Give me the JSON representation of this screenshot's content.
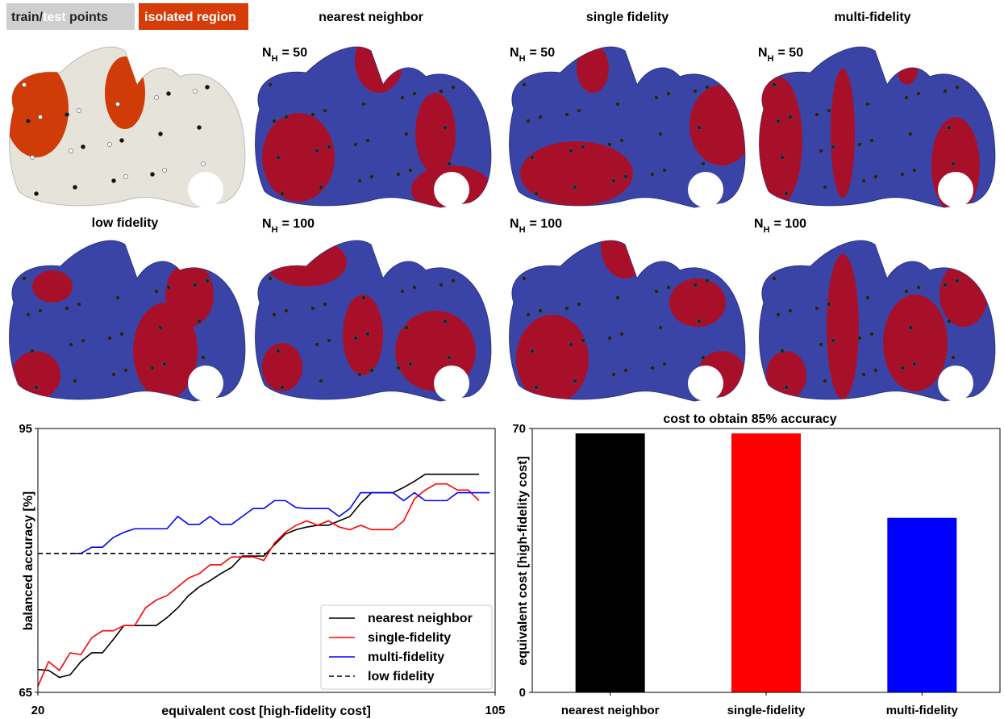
{
  "header": {
    "legend_a": [
      "train/",
      "test",
      " points"
    ],
    "legend_b": "isolated region"
  },
  "columns": [
    "nearest neighbor",
    "single fidelity",
    "multi-fidelity"
  ],
  "low_fidelity_label": "low fidelity",
  "n_symbol": {
    "main": "N",
    "sub": "H"
  },
  "n_values": [
    "= 50",
    "= 100"
  ],
  "chart_data": [
    {
      "type": "line",
      "xlabel": "equivalent cost [high-fidelity cost]",
      "ylabel": "balanced accuracy [%]",
      "x": [
        20,
        22,
        24,
        26,
        28,
        30,
        32,
        34,
        36,
        38,
        40,
        42,
        44,
        46,
        48,
        50,
        52,
        54,
        56,
        58,
        60,
        62,
        64,
        66,
        68,
        70,
        72,
        74,
        76,
        78,
        80,
        82,
        84,
        86,
        88,
        90,
        92,
        94,
        96,
        98,
        100,
        102,
        104
      ],
      "series": [
        {
          "name": "nearest neighbor",
          "color": "#000000",
          "values": [
            67.6,
            67.5,
            66.7,
            67.0,
            68.5,
            69.5,
            69.5,
            71.0,
            72.6,
            72.6,
            72.6,
            72.6,
            73.5,
            74.6,
            76.0,
            77.0,
            77.7,
            78.5,
            79.2,
            80.5,
            80.5,
            80.5,
            81.8,
            83.0,
            83.5,
            83.8,
            84.0,
            84.0,
            84.5,
            85.0,
            86.5,
            87.7,
            87.7,
            87.7,
            88.3,
            89.0,
            89.8,
            89.8,
            89.8,
            89.8,
            89.8,
            89.8,
            null
          ]
        },
        {
          "name": "single-fidelity",
          "color": "#ff0000",
          "values": [
            65.7,
            68.5,
            67.5,
            69.5,
            69.3,
            71.2,
            72.0,
            72.0,
            72.6,
            72.6,
            74.6,
            75.5,
            76.0,
            77.0,
            78.0,
            78.5,
            79.5,
            79.5,
            80.4,
            80.4,
            80.4,
            80.0,
            82.0,
            83.2,
            84.0,
            84.5,
            84.0,
            84.5,
            83.8,
            83.5,
            84.0,
            83.5,
            83.5,
            83.5,
            84.5,
            87.0,
            88.0,
            88.7,
            88.7,
            88.0,
            88.0,
            86.8,
            null
          ]
        },
        {
          "name": "multi-fidelity",
          "color": "#0000ff",
          "values": [
            null,
            null,
            null,
            80.8,
            80.8,
            81.5,
            81.5,
            82.6,
            83.2,
            83.6,
            83.6,
            83.6,
            83.6,
            85.0,
            84.1,
            84.1,
            85.0,
            84.1,
            84.1,
            85.0,
            85.9,
            85.9,
            86.8,
            86.8,
            86.0,
            85.9,
            85.9,
            85.9,
            85.0,
            85.9,
            87.7,
            87.7,
            87.7,
            87.7,
            86.8,
            87.7,
            86.8,
            86.8,
            86.8,
            87.7,
            87.7,
            87.7,
            87.7
          ]
        }
      ],
      "reference_line": {
        "name": "low fidelity",
        "value": 80.8,
        "color": "#000000",
        "dashed": true
      },
      "xlim": [
        20,
        105
      ],
      "ylim": [
        65,
        95
      ],
      "xticks": [
        20,
        105
      ],
      "yticks": [
        65,
        95
      ],
      "legend": "lower right"
    },
    {
      "type": "bar",
      "title": "cost to obtain 85% accuracy",
      "ylabel": "equivalent cost [high-fidelity cost]",
      "categories": [
        "nearest neighbor",
        "single-fidelity",
        "multi-fidelity"
      ],
      "values": [
        68.7,
        68.7,
        46.3
      ],
      "colors": [
        "#000000",
        "#ff0000",
        "#0000ff"
      ],
      "ylim": [
        0,
        70
      ],
      "yticks": [
        0,
        70
      ]
    }
  ]
}
